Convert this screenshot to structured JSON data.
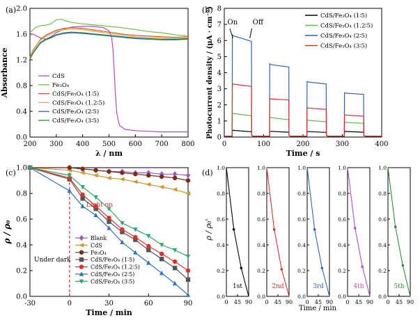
{
  "chart_data": [
    {
      "panel": "(a)",
      "type": "line",
      "xlabel": "λ / nm",
      "ylabel": "Absorbance",
      "xlim": [
        200,
        800
      ],
      "ylim": [
        0.0,
        2.0
      ],
      "xticks": [
        200,
        300,
        400,
        500,
        600,
        700,
        800
      ],
      "yticks": [
        0.0,
        0.4,
        0.8,
        1.2,
        1.6,
        2.0
      ],
      "legend_position": "bottom-left",
      "series": [
        {
          "name": "CdS",
          "color": "#b04fc0",
          "x": [
            200,
            210,
            220,
            240,
            260,
            280,
            300,
            330,
            360,
            400,
            440,
            480,
            500,
            510,
            515,
            520,
            525,
            530,
            540,
            560,
            600,
            650,
            700,
            750,
            800
          ],
          "y": [
            1.61,
            1.6,
            1.58,
            1.54,
            1.52,
            1.56,
            1.62,
            1.68,
            1.71,
            1.72,
            1.72,
            1.7,
            1.65,
            1.55,
            1.35,
            1.0,
            0.6,
            0.35,
            0.18,
            0.12,
            0.1,
            0.09,
            0.08,
            0.08,
            0.08
          ]
        },
        {
          "name": "Fe₃O₄",
          "color": "#6cc24a",
          "x": [
            200,
            210,
            220,
            240,
            260,
            280,
            300,
            320,
            340,
            360,
            400,
            450,
            500,
            550,
            600,
            650,
            700,
            750,
            800
          ],
          "y": [
            1.62,
            1.66,
            1.7,
            1.73,
            1.74,
            1.76,
            1.82,
            1.83,
            1.8,
            1.78,
            1.76,
            1.74,
            1.72,
            1.7,
            1.67,
            1.64,
            1.62,
            1.59,
            1.57
          ]
        },
        {
          "name": "CdS/Fe₃O₄ (1∶5)",
          "color": "#d2552b",
          "x": [
            200,
            210,
            220,
            240,
            260,
            280,
            300,
            330,
            360,
            400,
            450,
            500,
            550,
            600,
            650,
            700,
            750,
            800
          ],
          "y": [
            1.24,
            1.34,
            1.4,
            1.52,
            1.58,
            1.62,
            1.66,
            1.69,
            1.7,
            1.69,
            1.66,
            1.63,
            1.6,
            1.58,
            1.57,
            1.56,
            1.55,
            1.56
          ]
        },
        {
          "name": "CdS/Fe₃O₄ (1.2∶5)",
          "color": "#f0a830",
          "x": [
            200,
            210,
            220,
            240,
            260,
            280,
            300,
            330,
            360,
            400,
            450,
            500,
            550,
            600,
            650,
            700,
            750,
            800
          ],
          "y": [
            1.23,
            1.33,
            1.39,
            1.51,
            1.56,
            1.6,
            1.64,
            1.67,
            1.68,
            1.67,
            1.64,
            1.61,
            1.58,
            1.56,
            1.55,
            1.54,
            1.53,
            1.54
          ]
        },
        {
          "name": "CdS/Fe₃O₄ (2∶5)",
          "color": "#2f63b8",
          "x": [
            200,
            210,
            220,
            240,
            260,
            280,
            300,
            330,
            360,
            400,
            450,
            500,
            550,
            600,
            650,
            700,
            750,
            800
          ],
          "y": [
            1.22,
            1.3,
            1.36,
            1.47,
            1.52,
            1.55,
            1.59,
            1.62,
            1.63,
            1.62,
            1.6,
            1.58,
            1.56,
            1.54,
            1.53,
            1.52,
            1.52,
            1.53
          ]
        },
        {
          "name": "CdS/Fe₃O₄ (3∶5)",
          "color": "#2e8b3a",
          "x": [
            200,
            210,
            220,
            240,
            260,
            280,
            300,
            330,
            360,
            400,
            450,
            500,
            550,
            600,
            650,
            700,
            750,
            800
          ],
          "y": [
            1.21,
            1.29,
            1.35,
            1.46,
            1.51,
            1.54,
            1.58,
            1.61,
            1.62,
            1.61,
            1.59,
            1.57,
            1.55,
            1.53,
            1.52,
            1.51,
            1.51,
            1.52
          ]
        }
      ]
    },
    {
      "panel": "(b)",
      "type": "line",
      "xlabel": "Time / s",
      "ylabel": "Photocurrent density / (μA · cm⁻²)",
      "xlim": [
        0,
        400
      ],
      "ylim": [
        0,
        8
      ],
      "xticks": [
        0,
        100,
        200,
        300,
        400
      ],
      "yticks": [
        0,
        1,
        2,
        3,
        4,
        5,
        6,
        7,
        8
      ],
      "legend_position": "top-right",
      "annotations": [
        "On",
        "Off"
      ],
      "on_off_cycles": [
        [
          20,
          70
        ],
        [
          115,
          165
        ],
        [
          210,
          260
        ],
        [
          305,
          355
        ]
      ],
      "series": [
        {
          "name": "CdS/Fe₃O₄ (1∶5)",
          "color": "#000000",
          "dark": 0.05,
          "peaks": [
            0.42,
            0.36,
            0.34,
            0.35
          ],
          "plateaus": [
            0.33,
            0.3,
            0.29,
            0.3
          ]
        },
        {
          "name": "CdS/Fe₃O₄ (1.2∶5)",
          "color": "#5cbf4a",
          "dark": 0.05,
          "peaks": [
            1.48,
            1.22,
            1.05,
            0.92
          ],
          "plateaus": [
            1.32,
            1.08,
            0.95,
            0.85
          ]
        },
        {
          "name": "CdS/Fe₃O₄ (2∶5)",
          "color": "#2f63b8",
          "dark": 0.05,
          "peaks": [
            6.35,
            4.55,
            3.45,
            2.75
          ],
          "plateaus": [
            5.95,
            4.35,
            3.3,
            2.65
          ]
        },
        {
          "name": "CdS/Fe₃O₄ (3∶5)",
          "color": "#e0302a",
          "dark": 0.05,
          "peaks": [
            3.32,
            2.4,
            1.82,
            1.38
          ],
          "plateaus": [
            3.15,
            2.3,
            1.72,
            1.3
          ]
        }
      ]
    },
    {
      "panel": "(c)",
      "type": "line",
      "xlabel": "Time / min",
      "ylabel": "ρ / ρ₀",
      "xlim": [
        -30,
        90
      ],
      "ylim": [
        0.0,
        1.0
      ],
      "xticks": [
        -30,
        0,
        30,
        60,
        90
      ],
      "yticks": [
        0.0,
        0.2,
        0.4,
        0.6,
        0.8,
        1.0
      ],
      "legend_position": "bottom-left",
      "annotations": [
        "Light on",
        "Under dark"
      ],
      "series": [
        {
          "name": "Blank",
          "color": "#9b59c9",
          "marker": "diamond",
          "x": [
            -30,
            0,
            10,
            20,
            30,
            40,
            50,
            60,
            70,
            80,
            90
          ],
          "y": [
            1.0,
            1.0,
            0.99,
            0.98,
            0.97,
            0.97,
            0.96,
            0.96,
            0.95,
            0.95,
            0.94
          ]
        },
        {
          "name": "CdS",
          "color": "#c89a30",
          "marker": "triangle-left",
          "x": [
            -30,
            0,
            10,
            20,
            30,
            40,
            50,
            60,
            70,
            80,
            90
          ],
          "y": [
            1.0,
            0.98,
            0.96,
            0.94,
            0.92,
            0.91,
            0.89,
            0.87,
            0.85,
            0.83,
            0.8
          ]
        },
        {
          "name": "Fe₃O₄",
          "color": "#7a2a1a",
          "marker": "circle",
          "x": [
            -30,
            0,
            10,
            20,
            30,
            40,
            50,
            60,
            70,
            80,
            90
          ],
          "y": [
            1.0,
            1.0,
            0.99,
            0.98,
            0.97,
            0.96,
            0.95,
            0.94,
            0.93,
            0.92,
            0.9
          ]
        },
        {
          "name": "CdS/Fe₃O₄ (1∶5)",
          "color": "#555555",
          "marker": "square",
          "x": [
            -30,
            0,
            10,
            20,
            30,
            40,
            50,
            60,
            70,
            80,
            90
          ],
          "y": [
            1.0,
            0.91,
            0.76,
            0.68,
            0.58,
            0.5,
            0.44,
            0.36,
            0.29,
            0.22,
            0.13
          ]
        },
        {
          "name": "CdS/Fe₃O₄ (1.2∶5)",
          "color": "#e0302a",
          "marker": "circle",
          "x": [
            -30,
            0,
            10,
            20,
            30,
            40,
            50,
            60,
            70,
            80,
            90
          ],
          "y": [
            1.0,
            0.92,
            0.79,
            0.7,
            0.61,
            0.52,
            0.46,
            0.39,
            0.33,
            0.27,
            0.2
          ]
        },
        {
          "name": "CdS/Fe₃O₄ (2∶5)",
          "color": "#2f72c0",
          "marker": "triangle-up",
          "x": [
            -30,
            0,
            10,
            20,
            30,
            40,
            50,
            60,
            70,
            80,
            90
          ],
          "y": [
            1.0,
            0.82,
            0.7,
            0.63,
            0.53,
            0.42,
            0.34,
            0.26,
            0.18,
            0.1,
            0.01
          ]
        },
        {
          "name": "CdS/Fe₃O₄ (3∶5)",
          "color": "#2fa86c",
          "marker": "triangle-down",
          "x": [
            -30,
            0,
            10,
            20,
            30,
            40,
            50,
            60,
            70,
            80,
            90
          ],
          "y": [
            1.0,
            0.94,
            0.85,
            0.77,
            0.68,
            0.57,
            0.52,
            0.47,
            0.4,
            0.36,
            0.31
          ]
        }
      ]
    },
    {
      "panel": "(d)",
      "type": "line",
      "xlabel": "Time / min",
      "ylabel": "ρ / ρ₀'",
      "xlim": [
        0,
        90
      ],
      "ylim": [
        0.0,
        1.0
      ],
      "xticks": [
        0,
        45,
        90
      ],
      "yticks": [
        0.0,
        0.2,
        0.4,
        0.6,
        0.8,
        1.0
      ],
      "subplots": [
        {
          "label": "1st",
          "color": "#000000",
          "x": [
            0,
            30,
            60,
            90
          ],
          "y": [
            1.0,
            0.52,
            0.22,
            0.0
          ]
        },
        {
          "label": "2nd",
          "color": "#e0302a",
          "x": [
            0,
            30,
            60,
            90
          ],
          "y": [
            1.0,
            0.52,
            0.21,
            0.0
          ]
        },
        {
          "label": "3rd",
          "color": "#2f63b8",
          "x": [
            0,
            30,
            60,
            90
          ],
          "y": [
            1.0,
            0.52,
            0.22,
            0.0
          ]
        },
        {
          "label": "4th",
          "color": "#b04fc0",
          "x": [
            0,
            30,
            60,
            90
          ],
          "y": [
            1.0,
            0.53,
            0.23,
            0.0
          ]
        },
        {
          "label": "5th",
          "color": "#2e8b3a",
          "x": [
            0,
            30,
            60,
            90
          ],
          "y": [
            1.0,
            0.54,
            0.24,
            0.0
          ]
        }
      ]
    }
  ]
}
